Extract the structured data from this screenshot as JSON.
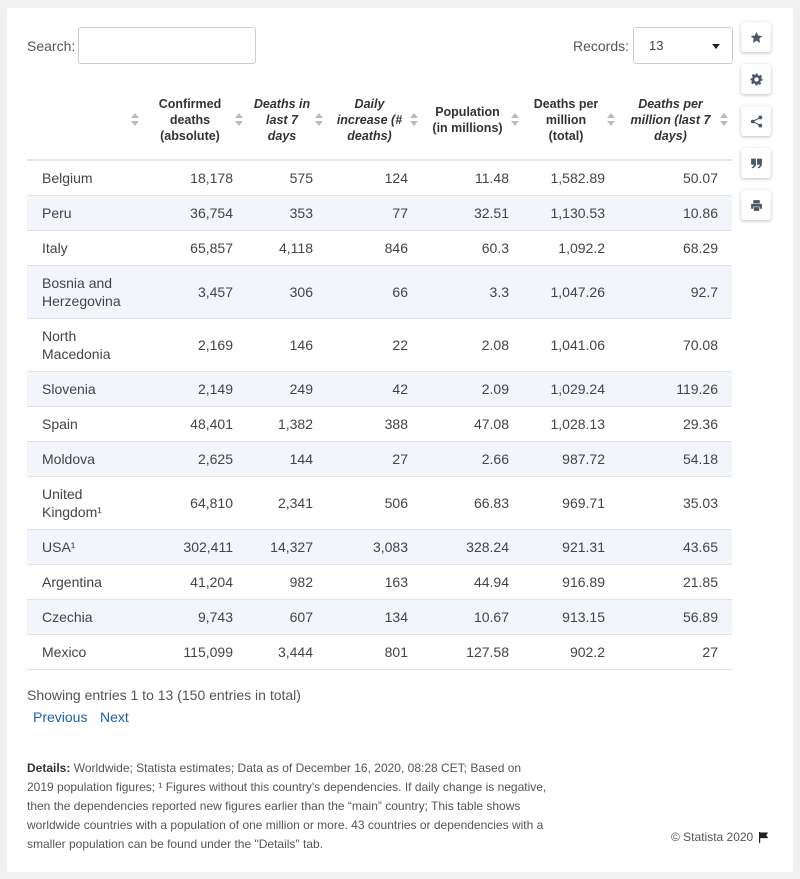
{
  "search": {
    "label": "Search:",
    "value": ""
  },
  "records": {
    "label": "Records:",
    "selected": "13"
  },
  "table": {
    "headers": [
      "",
      "Confirmed deaths (absolute)",
      "Deaths in last 7 days",
      "Daily increase (# deaths)",
      "Population (in millions)",
      "Deaths per million (total)",
      "Deaths per million (last 7 days)"
    ],
    "rows": [
      [
        "Belgium",
        "18,178",
        "575",
        "124",
        "11.48",
        "1,582.89",
        "50.07"
      ],
      [
        "Peru",
        "36,754",
        "353",
        "77",
        "32.51",
        "1,130.53",
        "10.86"
      ],
      [
        "Italy",
        "65,857",
        "4,118",
        "846",
        "60.3",
        "1,092.2",
        "68.29"
      ],
      [
        "Bosnia and Herzegovina",
        "3,457",
        "306",
        "66",
        "3.3",
        "1,047.26",
        "92.7"
      ],
      [
        "North Macedonia",
        "2,169",
        "146",
        "22",
        "2.08",
        "1,041.06",
        "70.08"
      ],
      [
        "Slovenia",
        "2,149",
        "249",
        "42",
        "2.09",
        "1,029.24",
        "119.26"
      ],
      [
        "Spain",
        "48,401",
        "1,382",
        "388",
        "47.08",
        "1,028.13",
        "29.36"
      ],
      [
        "Moldova",
        "2,625",
        "144",
        "27",
        "2.66",
        "987.72",
        "54.18"
      ],
      [
        "United Kingdom¹",
        "64,810",
        "2,341",
        "506",
        "66.83",
        "969.71",
        "35.03"
      ],
      [
        "USA¹",
        "302,411",
        "14,327",
        "3,083",
        "328.24",
        "921.31",
        "43.65"
      ],
      [
        "Argentina",
        "41,204",
        "982",
        "163",
        "44.94",
        "916.89",
        "21.85"
      ],
      [
        "Czechia",
        "9,743",
        "607",
        "134",
        "10.67",
        "913.15",
        "56.89"
      ],
      [
        "Mexico",
        "115,099",
        "3,444",
        "801",
        "127.58",
        "902.2",
        "27"
      ]
    ]
  },
  "info": "Showing entries 1 to 13 (150 entries in total)",
  "pager": {
    "previous": "Previous",
    "next": "Next"
  },
  "details": {
    "label": "Details:",
    "text": "Worldwide; Statista estimates; Data as of December 16, 2020, 08:28 CET; Based on 2019 population figures; ¹ Figures without this country's dependencies. If daily change is negative, then the dependencies reported new figures earlier than the “main” country; This table shows worldwide countries with a population of one million or more. 43 countries or dependencies with a smaller population can be found under the \"Details\" tab."
  },
  "copyright": "© Statista 2020",
  "side_buttons": [
    "star-icon",
    "gear-icon",
    "share-icon",
    "quote-icon",
    "print-icon"
  ],
  "colors": {
    "link": "#1f5fae",
    "stripe": "#f2f5fa",
    "icon": "#4a5868"
  }
}
